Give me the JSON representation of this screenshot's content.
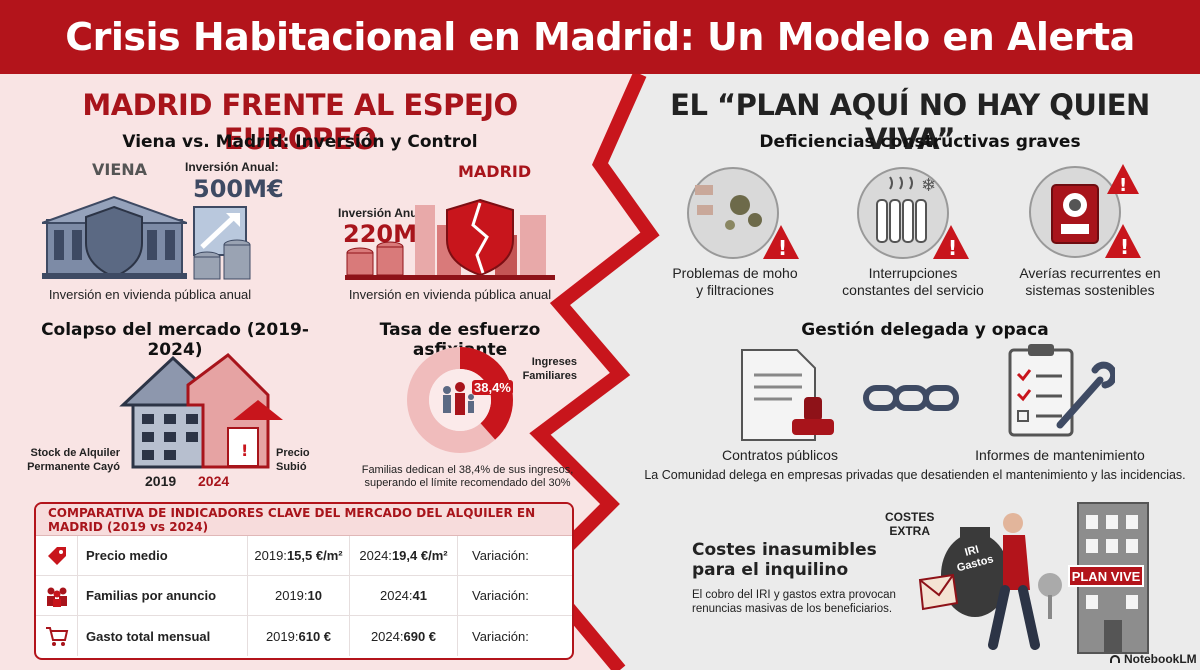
{
  "banner": {
    "title": "Crisis Habitacional en Madrid: Un Modelo en Alerta"
  },
  "left": {
    "title": "MADRID FRENTE AL ESPEJO EUROPEO",
    "vienna_madrid": {
      "heading": "Viena vs. Madrid: Inversión y Control",
      "vienna_label": "VIENA",
      "vienna_inv_label": "Inversión Anual:",
      "vienna_inv_value": "500M€",
      "vienna_caption": "Inversión en vivienda pública anual",
      "madrid_label": "MADRID",
      "madrid_inv_label": "Inversión Anual:",
      "madrid_inv_value": "220M€",
      "madrid_caption": "Inversión en vivienda pública anual"
    },
    "collapse": {
      "heading": "Colapso del mercado (2019-2024)",
      "stock_label": "Stock de Alquiler Permanente Cayó",
      "price_label": "Precio Subió",
      "year_a": "2019",
      "year_b": "2024"
    },
    "effort": {
      "heading": "Tasa de esfuerzo asfixiante",
      "percent": "38,4%",
      "percent_value": 38.4,
      "ring_label": "Ingreses Familiares",
      "caption": "Familias dedican el 38,4% de sus ingresos, superando el límite recomendado del 30%"
    },
    "table": {
      "title": "COMPARATIVA DE INDICADORES CLAVE DEL MERCADO DEL ALQUILER EN MADRID (2019 vs 2024)",
      "rows": [
        {
          "label": "Precio medio",
          "v1_prefix": "2019: ",
          "v1": "15,5 €/m²",
          "v2_prefix": "2024: ",
          "v2": "19,4 €/m²",
          "var": "Variación:"
        },
        {
          "label": "Familias por anuncio",
          "v1_prefix": "2019: ",
          "v1": "10",
          "v2_prefix": "2024: ",
          "v2": "41",
          "var": "Variación:"
        },
        {
          "label": "Gasto total mensual",
          "v1_prefix": "2019: ",
          "v1": "610 €",
          "v2_prefix": "2024: ",
          "v2": "690 €",
          "var": "Variación:"
        }
      ]
    }
  },
  "right": {
    "title": "EL “PLAN AQUÍ NO HAY QUIEN VIVA”",
    "deficiencies": {
      "heading": "Deficiencias constructivas graves",
      "items": [
        {
          "caption_1": "Problemas de moho",
          "caption_2": "y filtraciones"
        },
        {
          "caption_1": "Interrupciones",
          "caption_2": "constantes del servicio"
        },
        {
          "caption_1": "Averías recurrentes en",
          "caption_2": "sistemas sostenibles"
        }
      ]
    },
    "management": {
      "heading": "Gestión delegada y opaca",
      "contracts": "Contratos públicos",
      "reports": "Informes de mantenimiento",
      "caption": "La Comunidad delega en empresas privadas que desatienden el mantenimiento y las incidencias."
    },
    "costs": {
      "heading_1": "Costes inasumibles",
      "heading_2": "para el inquilino",
      "text_1": "El cobro del IRI y gastos extra provocan",
      "text_2": "renuncias masivas de los beneficiarios.",
      "tag_1": "COSTES",
      "tag_2": "EXTRA",
      "bag_1": "IRI",
      "bag_2": "Gastos",
      "sign": "PLAN VIVE"
    }
  },
  "footer": {
    "brand": "NotebookLM"
  },
  "colors": {
    "accent": "#b3141b",
    "left_bg": "#f8e1e1",
    "right_bg": "#ececec"
  }
}
